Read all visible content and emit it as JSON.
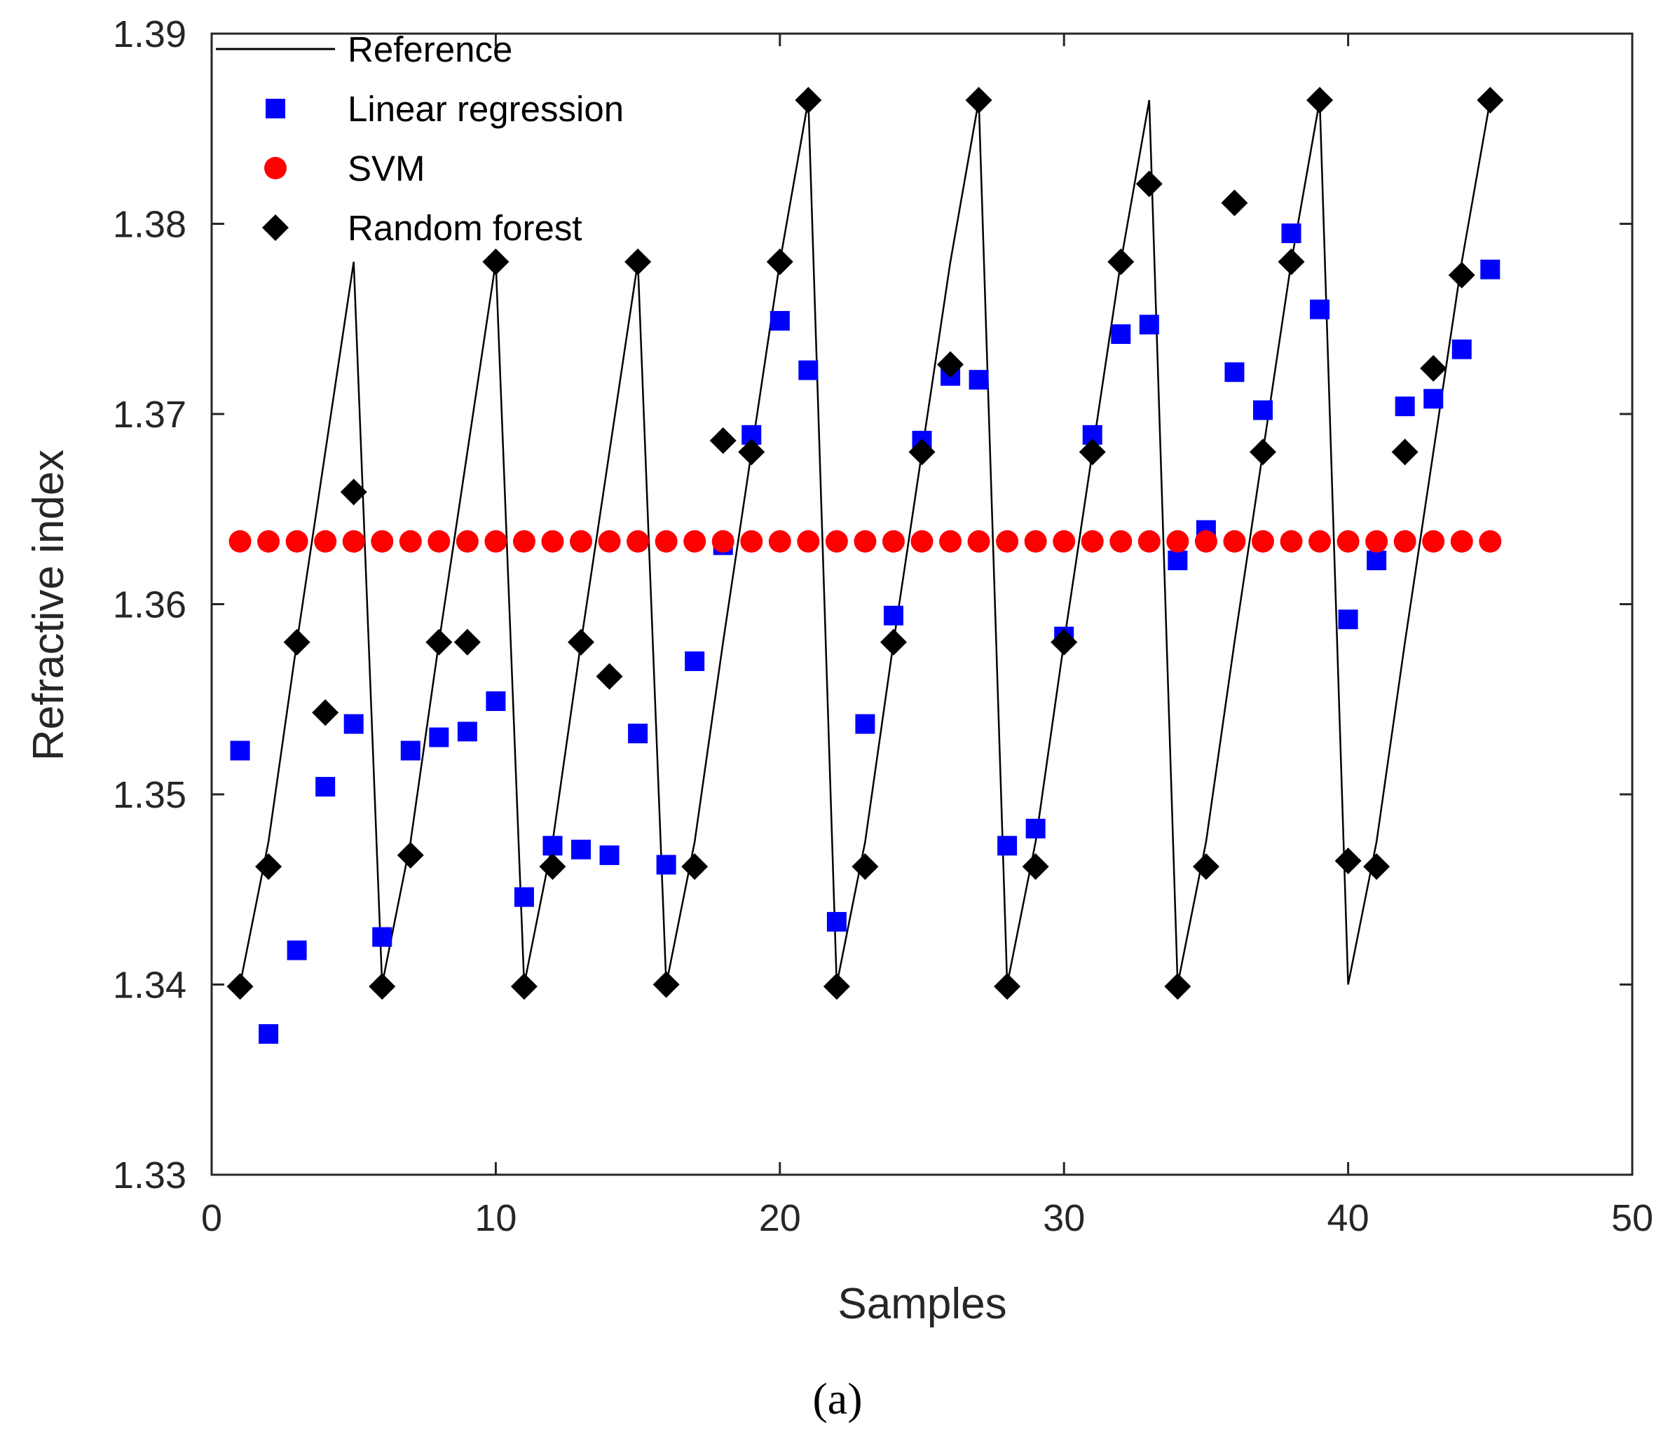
{
  "chart_data": {
    "type": "scatter",
    "title": "",
    "xlabel": "Samples",
    "ylabel": "Refractive index",
    "xlim": [
      0,
      50
    ],
    "ylim": [
      1.33,
      1.39
    ],
    "xticks": [
      0,
      10,
      20,
      30,
      40,
      50
    ],
    "xtick_labels": [
      "0",
      "10",
      "20",
      "30",
      "40",
      "50"
    ],
    "yticks": [
      1.33,
      1.34,
      1.35,
      1.36,
      1.37,
      1.38,
      1.39
    ],
    "ytick_labels": [
      "1.33",
      "1.34",
      "1.35",
      "1.36",
      "1.37",
      "1.38",
      "1.39"
    ],
    "grid": false,
    "legend_position": "top-left",
    "caption": "(a)",
    "series": [
      {
        "name": "Reference",
        "kind": "line",
        "color": "#000000",
        "x": [
          1,
          2,
          3,
          4,
          5,
          6,
          7,
          8,
          9,
          10,
          11,
          12,
          13,
          14,
          15,
          16,
          17,
          18,
          19,
          20,
          21,
          22,
          23,
          24,
          25,
          26,
          27,
          28,
          29,
          30,
          31,
          32,
          33,
          34,
          35,
          36,
          37,
          38,
          39,
          40,
          41,
          42,
          43,
          44,
          45
        ],
        "values": [
          1.34,
          1.3475,
          1.358,
          1.368,
          1.378,
          1.34,
          1.3475,
          1.358,
          1.368,
          1.378,
          1.34,
          1.3475,
          1.358,
          1.368,
          1.378,
          1.34,
          1.3475,
          1.358,
          1.368,
          1.378,
          1.3865,
          1.34,
          1.3475,
          1.358,
          1.368,
          1.378,
          1.3865,
          1.34,
          1.3475,
          1.358,
          1.368,
          1.378,
          1.3865,
          1.34,
          1.3475,
          1.358,
          1.368,
          1.378,
          1.3865,
          1.34,
          1.3475,
          1.358,
          1.368,
          1.378,
          1.3865
        ]
      },
      {
        "name": "Linear regression",
        "kind": "square",
        "color": "#0000ff",
        "x": [
          1,
          2,
          3,
          4,
          5,
          6,
          7,
          8,
          9,
          10,
          11,
          12,
          13,
          14,
          15,
          16,
          17,
          18,
          19,
          20,
          21,
          22,
          23,
          24,
          25,
          26,
          27,
          28,
          29,
          30,
          31,
          32,
          33,
          34,
          35,
          36,
          37,
          38,
          39,
          40,
          41,
          42,
          43,
          44,
          45
        ],
        "values": [
          1.3523,
          1.3374,
          1.3418,
          1.3504,
          1.3537,
          1.3425,
          1.3523,
          1.353,
          1.3533,
          1.3549,
          1.3446,
          1.3473,
          1.3471,
          1.3468,
          1.3532,
          1.3463,
          1.357,
          1.3631,
          1.3689,
          1.3749,
          1.3723,
          1.3433,
          1.3537,
          1.3594,
          1.3686,
          1.372,
          1.3718,
          1.3473,
          1.3482,
          1.3583,
          1.3689,
          1.3742,
          1.3747,
          1.3623,
          1.3639,
          1.3722,
          1.3702,
          1.3795,
          1.3755,
          1.3592,
          1.3623,
          1.3704,
          1.3708,
          1.3734,
          1.3776
        ]
      },
      {
        "name": "SVM",
        "kind": "circle",
        "color": "#ff0000",
        "x": [
          1,
          2,
          3,
          4,
          5,
          6,
          7,
          8,
          9,
          10,
          11,
          12,
          13,
          14,
          15,
          16,
          17,
          18,
          19,
          20,
          21,
          22,
          23,
          24,
          25,
          26,
          27,
          28,
          29,
          30,
          31,
          32,
          33,
          34,
          35,
          36,
          37,
          38,
          39,
          40,
          41,
          42,
          43,
          44,
          45
        ],
        "values": [
          1.3633,
          1.3633,
          1.3633,
          1.3633,
          1.3633,
          1.3633,
          1.3633,
          1.3633,
          1.3633,
          1.3633,
          1.3633,
          1.3633,
          1.3633,
          1.3633,
          1.3633,
          1.3633,
          1.3633,
          1.3633,
          1.3633,
          1.3633,
          1.3633,
          1.3633,
          1.3633,
          1.3633,
          1.3633,
          1.3633,
          1.3633,
          1.3633,
          1.3633,
          1.3633,
          1.3633,
          1.3633,
          1.3633,
          1.3633,
          1.3633,
          1.3633,
          1.3633,
          1.3633,
          1.3633,
          1.3633,
          1.3633,
          1.3633,
          1.3633,
          1.3633,
          1.3633
        ]
      },
      {
        "name": "Random forest",
        "kind": "diamond",
        "color": "#000000",
        "x": [
          1,
          2,
          3,
          4,
          5,
          6,
          7,
          8,
          9,
          10,
          11,
          12,
          13,
          14,
          15,
          16,
          17,
          18,
          19,
          20,
          21,
          22,
          23,
          24,
          25,
          26,
          27,
          28,
          29,
          30,
          31,
          32,
          33,
          34,
          35,
          36,
          37,
          38,
          39,
          40,
          41,
          42,
          43,
          44,
          45
        ],
        "values": [
          1.3399,
          1.3462,
          1.358,
          1.3543,
          1.3659,
          1.3399,
          1.3468,
          1.358,
          1.358,
          1.378,
          1.3399,
          1.3462,
          1.358,
          1.3562,
          1.378,
          1.34,
          1.3462,
          1.3686,
          1.368,
          1.378,
          1.3865,
          1.3399,
          1.3462,
          1.358,
          1.368,
          1.3726,
          1.3865,
          1.3399,
          1.3462,
          1.358,
          1.368,
          1.378,
          1.3821,
          1.3399,
          1.3462,
          1.3811,
          1.368,
          1.378,
          1.3865,
          1.3465,
          1.3462,
          1.368,
          1.3724,
          1.3773,
          1.3865
        ]
      }
    ]
  }
}
